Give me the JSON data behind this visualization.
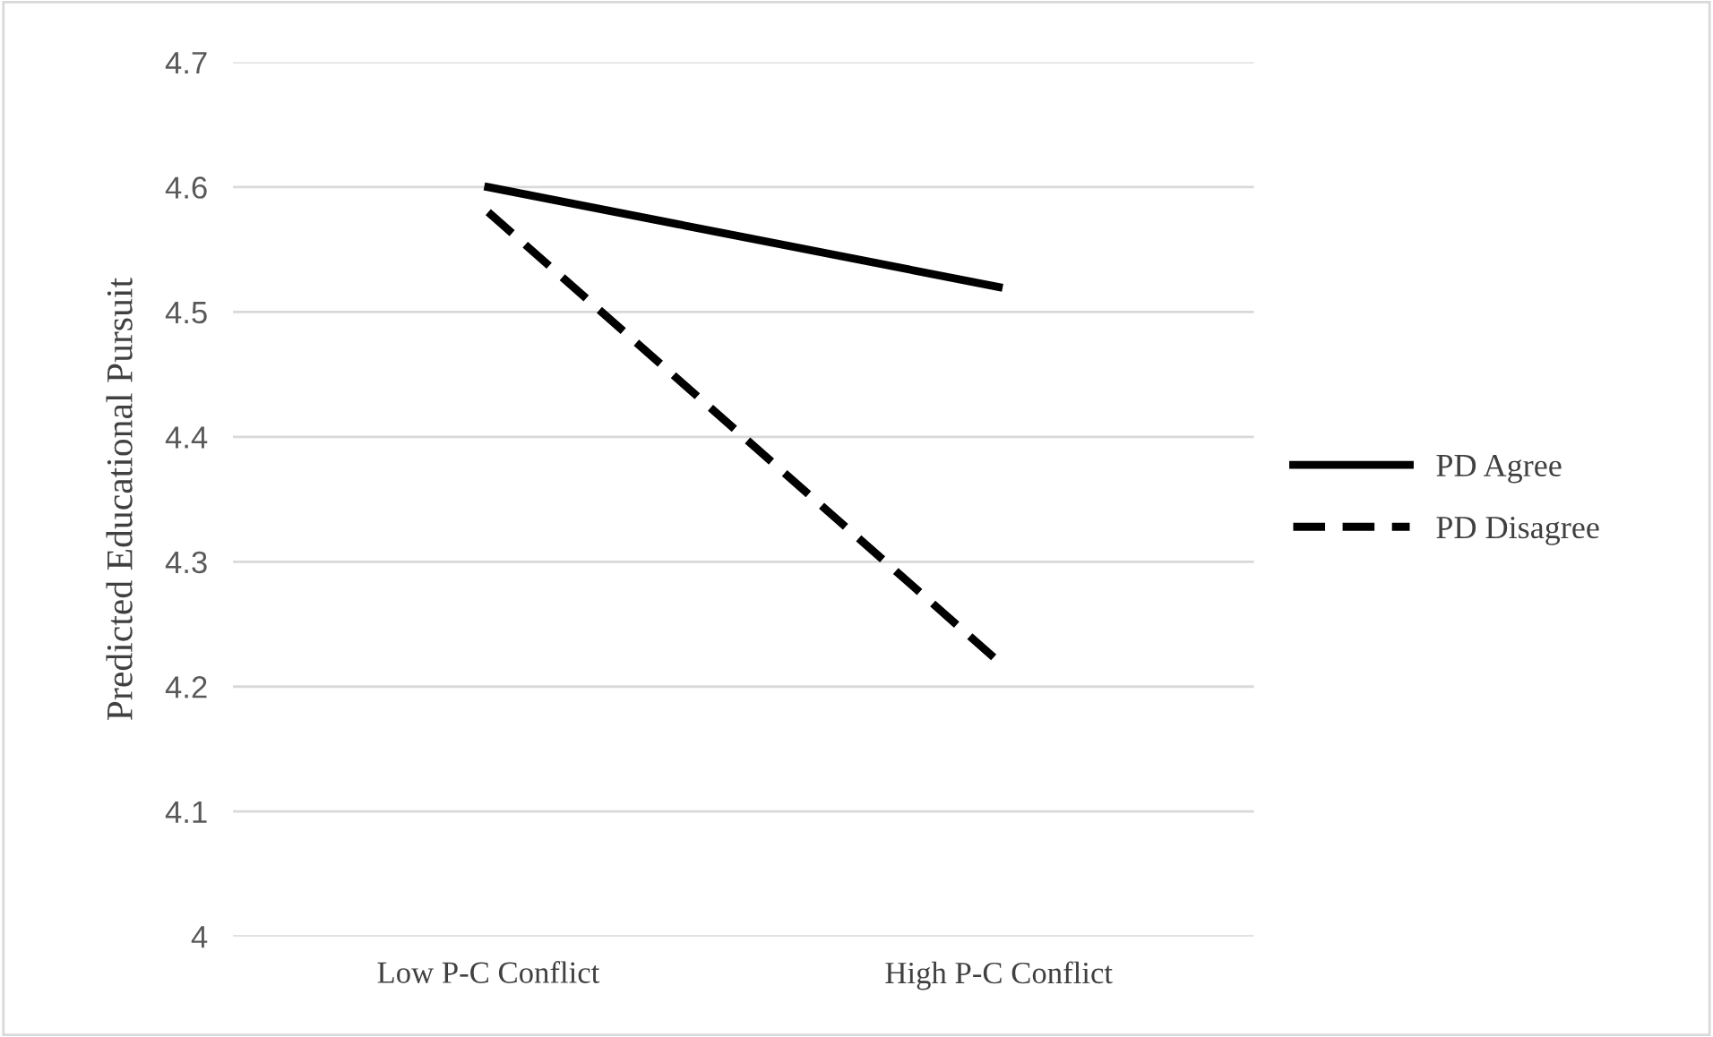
{
  "chart_data": {
    "type": "line",
    "ylabel": "Predicted Educational Pursuit",
    "categories": [
      "Low P-C Conflict",
      "High P-C Conflict"
    ],
    "series": [
      {
        "name": "PD Agree",
        "color": "#000000",
        "values": [
          4.6,
          4.52
        ],
        "line_style": "solid"
      },
      {
        "name": "PD Disagree",
        "color": "#000000",
        "values": [
          4.58,
          4.22
        ],
        "line_style": "dashed"
      }
    ],
    "ylim": [
      4,
      4.7
    ],
    "yticks": [
      4,
      4.1,
      4.2,
      4.3,
      4.4,
      4.5,
      4.6,
      4.7
    ],
    "grid": "y",
    "legend": "right",
    "marker": "none"
  }
}
